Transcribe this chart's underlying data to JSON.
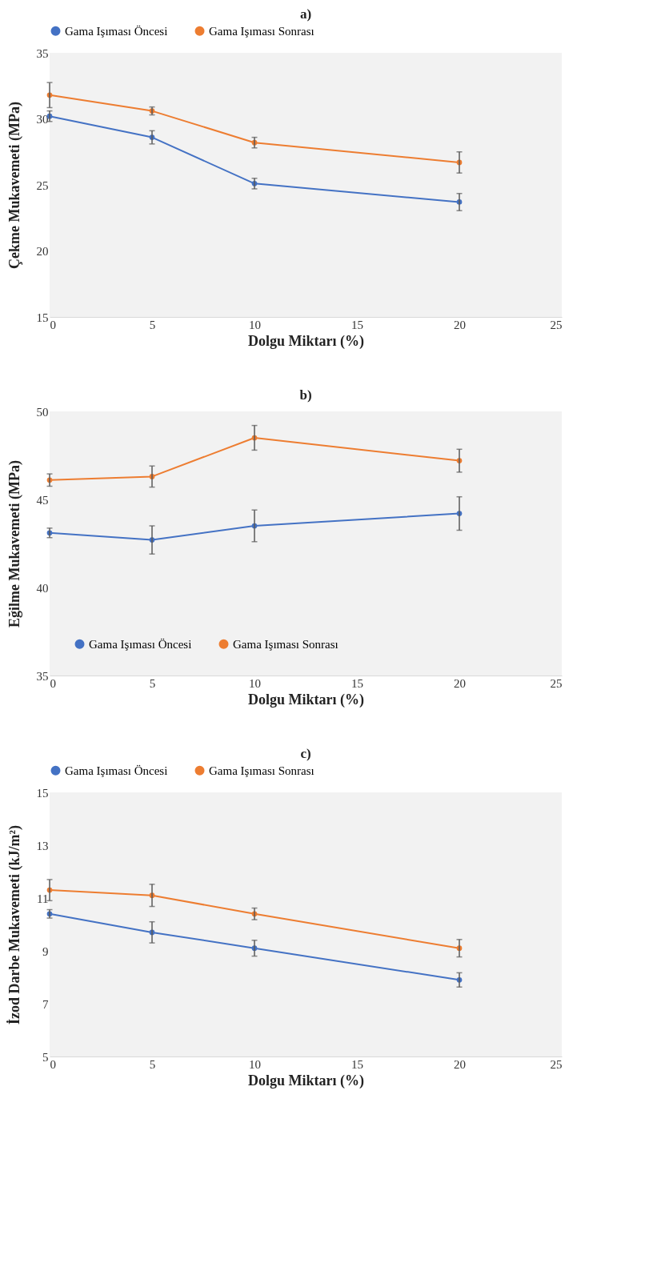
{
  "chart_data": [
    {
      "type": "line",
      "title": "a)",
      "xlabel": "Dolgu Miktarı (%)",
      "ylabel": "Çekme Mukavemeti (MPa)",
      "x": [
        0,
        5,
        10,
        20
      ],
      "xlim": [
        0,
        25
      ],
      "xticks": [
        0,
        5,
        10,
        15,
        20,
        25
      ],
      "ylim": [
        15,
        35
      ],
      "yticks": [
        15,
        20,
        25,
        30,
        35
      ],
      "grid": false,
      "legend": "top",
      "marker": "circle",
      "series": [
        {
          "name": "Gama Işıması Öncesi",
          "color": "#4472c4",
          "values": [
            30.2,
            28.6,
            25.1,
            23.7
          ],
          "errors": [
            0.4,
            0.5,
            0.4,
            0.65
          ]
        },
        {
          "name": "Gama Işıması Sonrası",
          "color": "#ed7d31",
          "values": [
            31.8,
            30.6,
            28.2,
            26.7
          ],
          "errors": [
            0.95,
            0.3,
            0.4,
            0.8
          ]
        }
      ]
    },
    {
      "type": "line",
      "title": "b)",
      "xlabel": "Dolgu Miktarı (%)",
      "ylabel": "Eğilme Mukavemeti (MPa)",
      "x": [
        0,
        5,
        10,
        20
      ],
      "xlim": [
        0,
        25
      ],
      "xticks": [
        0,
        5,
        10,
        15,
        20,
        25
      ],
      "ylim": [
        35,
        50
      ],
      "yticks": [
        35,
        40,
        45,
        50
      ],
      "grid": false,
      "legend": "bottom",
      "marker": "circle",
      "series": [
        {
          "name": "Gama Işıması Öncesi",
          "color": "#4472c4",
          "values": [
            43.1,
            42.7,
            43.5,
            44.2
          ],
          "errors": [
            0.27,
            0.8,
            0.9,
            0.95
          ]
        },
        {
          "name": "Gama Işıması Sonrası",
          "color": "#ed7d31",
          "values": [
            46.1,
            46.3,
            48.5,
            47.2
          ],
          "errors": [
            0.35,
            0.6,
            0.7,
            0.65
          ]
        }
      ]
    },
    {
      "type": "line",
      "title": "c)",
      "xlabel": "Dolgu Miktarı (%)",
      "ylabel": "İzod Darbe Mukavemeti (kJ/m²)",
      "x": [
        0,
        5,
        10,
        20
      ],
      "xlim": [
        0,
        25
      ],
      "xticks": [
        0,
        5,
        10,
        15,
        20,
        25
      ],
      "ylim": [
        5,
        15
      ],
      "yticks": [
        5,
        7,
        9,
        11,
        13,
        15
      ],
      "grid": false,
      "legend": "top",
      "marker": "circle",
      "series": [
        {
          "name": "Gama Işıması Öncesi",
          "color": "#4472c4",
          "values": [
            10.4,
            9.7,
            9.1,
            7.9
          ],
          "errors": [
            0.16,
            0.4,
            0.3,
            0.27
          ]
        },
        {
          "name": "Gama Işıması Sonrası",
          "color": "#ed7d31",
          "values": [
            11.3,
            11.1,
            10.4,
            9.1
          ],
          "errors": [
            0.4,
            0.42,
            0.22,
            0.33
          ]
        }
      ]
    }
  ]
}
